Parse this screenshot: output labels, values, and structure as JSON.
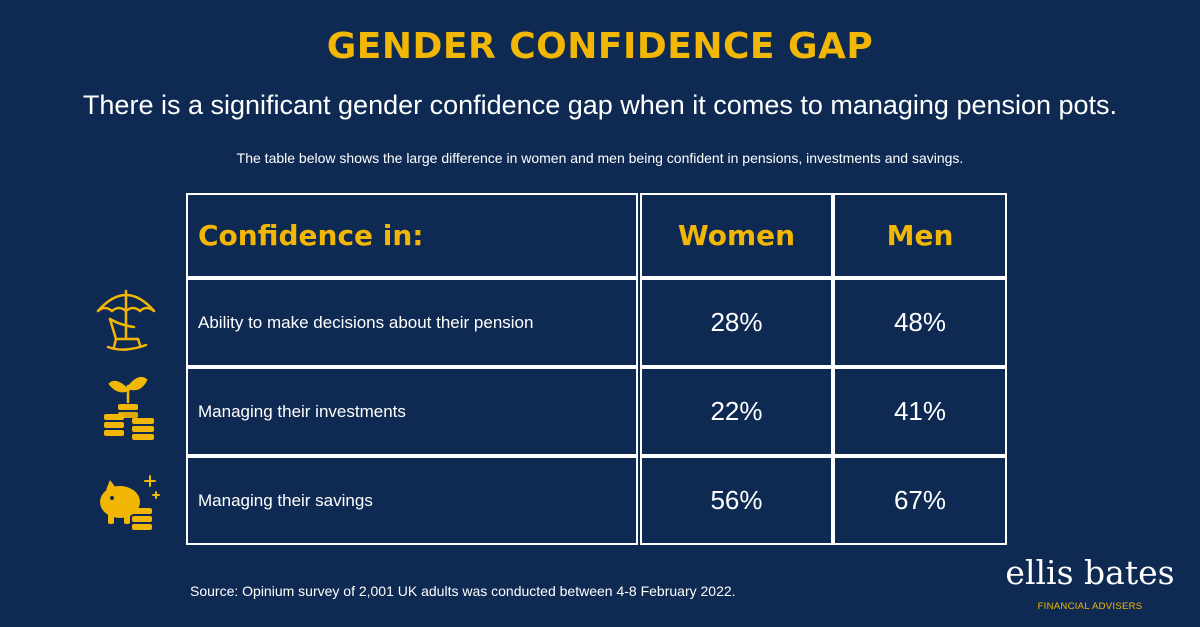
{
  "header": {
    "title": "GENDER CONFIDENCE GAP",
    "subtitle": "There is a significant gender confidence gap when it comes to managing pension pots.",
    "note": "The table below shows the large difference in women and men being confident in pensions, investments and savings."
  },
  "colors": {
    "background": "#0f2a52",
    "accent": "#f2b705",
    "text": "#ffffff"
  },
  "icons": [
    "beach-chair-umbrella-icon",
    "plant-coins-icon",
    "piggy-bank-coins-icon"
  ],
  "chart_data": {
    "type": "table",
    "header_label": "Confidence in:",
    "columns": [
      "Women",
      "Men"
    ],
    "rows": [
      {
        "label": "Ability to make decisions about their pension",
        "values": [
          "28%",
          "48%"
        ]
      },
      {
        "label": "Managing their investments",
        "values": [
          "22%",
          "41%"
        ]
      },
      {
        "label": "Managing their savings",
        "values": [
          "56%",
          "67%"
        ]
      }
    ]
  },
  "footer": {
    "source": "Source: Opinium survey of 2,001 UK adults was conducted between 4-8 February 2022.",
    "brand_name": "ellis bates",
    "brand_tagline": "FINANCIAL ADVISERS"
  }
}
